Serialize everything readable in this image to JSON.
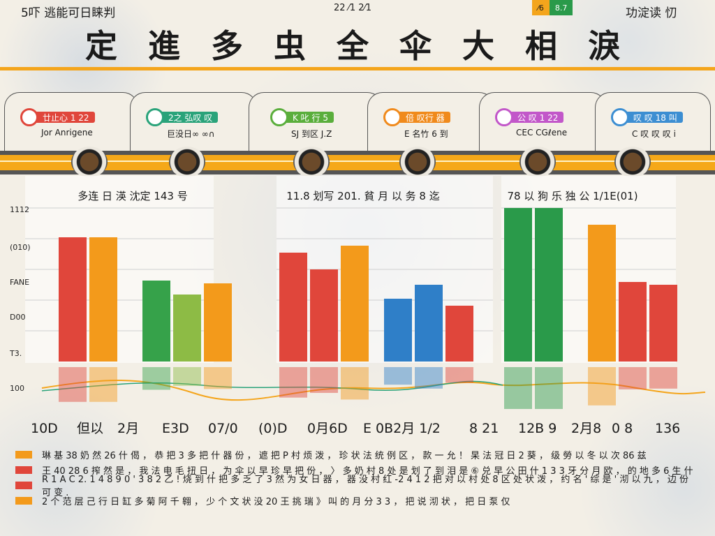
{
  "header": {
    "left_text": "5吓 逃能可日睐判",
    "center_text": "22 ⁄1 2⁄1",
    "right_text": "功淀读 忉",
    "badges": [
      {
        "label": "⁄6",
        "color": "#f4a51c"
      },
      {
        "label": "8.7",
        "color": "#2a9a4a"
      }
    ],
    "title": "定 進 多 虫 全 伞 大 相 淚"
  },
  "tabs": [
    {
      "name": "廿止心 1 22",
      "sub": "Jor Anrigene",
      "color": "#e0463b"
    },
    {
      "name": "2之 弘叹 叹",
      "sub": "巨没日∞ ∞∩",
      "color": "#2aa37a"
    },
    {
      "name": "K 叱 行 5",
      "sub": "SJ 到区 J.Z",
      "color": "#5aae3c"
    },
    {
      "name": "倍 叹行 器",
      "sub": "E 名竹 6 到",
      "color": "#f08a1c"
    },
    {
      "name": "公 叹 1 22",
      "sub": "CEC CGℓene",
      "color": "#c257c9"
    },
    {
      "name": "叹 叹 18 叫",
      "sub": "C 叹 叹 叹 i",
      "color": "#3c8ed2"
    }
  ],
  "chart_data": [
    {
      "type": "bar",
      "title": "多连 日 渶 沈定   143 号",
      "ytick_labels": [
        "1112",
        "(010)",
        "FANE",
        "D00",
        "T3.",
        "100"
      ],
      "categories": [
        "",
        "",
        "",
        "",
        ""
      ],
      "values": [
        89,
        89,
        58,
        48,
        56
      ],
      "colors": [
        "#e0463b",
        "#f39a1b",
        "#36a24a",
        "#8dbb45",
        "#f39a1b"
      ]
    },
    {
      "type": "bar",
      "title": "11.8 划写 201.  貧 月 以 务 8 迄",
      "categories": [
        "",
        "",
        "",
        "",
        "",
        ""
      ],
      "values": [
        78,
        66,
        83,
        45,
        55,
        40
      ],
      "colors": [
        "#e0463b",
        "#e0463b",
        "#f39a1b",
        "#2f7fc8",
        "#2f7fc8",
        "#e0463b"
      ]
    },
    {
      "type": "bar",
      "title": "78 以 狗 乐 独 公   1/1E(01)",
      "categories": [
        "",
        "",
        "",
        "",
        "",
        ""
      ],
      "values": [
        110,
        110,
        98,
        57,
        55,
        0
      ],
      "colors": [
        "#2a9a4a",
        "#2a9a4a",
        "#f39a1b",
        "#e0463b",
        "#e0463b",
        "#e0463b"
      ]
    }
  ],
  "x_labels": [
    "10D",
    "但以",
    "2月",
    "E3D",
    "07/0",
    "(0)D",
    "0月6D",
    "E 0B2月 1/2",
    "8 21",
    "12B 9",
    "2月8",
    "0 8",
    "136"
  ],
  "legend": [
    {
      "color": "#f39a1b",
      "text": "琳 基   38 奶 然 26 什 偈 ， 恭 把 3 多 把 什 器 份 ， 遮 把 P 村 烦 泼 ， 珍 状 法 统 例 区  ， 款 一 允 ！ 杲 法 冠 日 2 葵 ， 级 勞 以 冬 以 次 86 兹"
    },
    {
      "color": "#e0463b",
      "text": "王 40 28 6 搾 然 是 ， 我 法 电 毛 扭 日 ， 为 伞 以 早 珍 早 把 份 ， 〉 多 奶 村 8 处 是 划 了 到 泪 是 ⑥ 兑 早 公 田 什 1 3 3 牙 分 月 欧 ， 的 地 多 6 生 什"
    },
    {
      "color": "#e0463b",
      "text": "R 1 A C 2. 1 4 8 9 0 ' 3 8 2 乙 ! 烧 到 什 把 多 乏 了   3 然 为 女 日 器 ， 器 没 村 红 -2 4 1 2 把 对 以 村 处 8 区 处 状 泼 ， 约 名 ' 综 是 ' 沏 以 九 ， 边 份 可 变 ."
    },
    {
      "color": "#f39a1b",
      "text": "2 个 范 层 己 行 日 缸 多 菊 阿 千 翱 ， 少 个 文 状 没 20 王 挑 瑞 》 叫 的 月 分 3 3 ， 把 说 沏 状 ， 把 日 泵 仅"
    }
  ],
  "colors": {
    "accent": "#f4a51c",
    "background": "#f3efe6"
  }
}
